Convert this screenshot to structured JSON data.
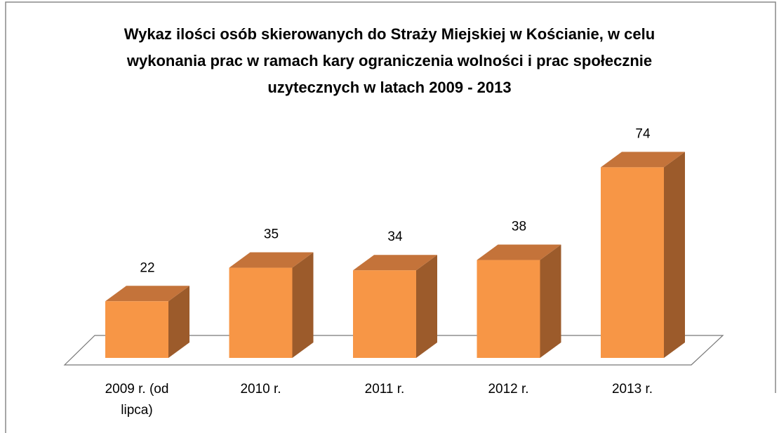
{
  "chart_data": {
    "type": "bar3d",
    "title": "Wykaz ilości osób skierowanych do Straży Miejskiej w Kościanie, w celu wykonania prac w ramach kary ograniczenia wolności i prac społecznie uzytecznych w latach 2009 - 2013",
    "categories": [
      "2009 r. (od lipca)",
      "2010 r.",
      "2011 r.",
      "2012 r.",
      "2013 r."
    ],
    "values": [
      22,
      35,
      34,
      38,
      74
    ],
    "color": "#f79646"
  }
}
